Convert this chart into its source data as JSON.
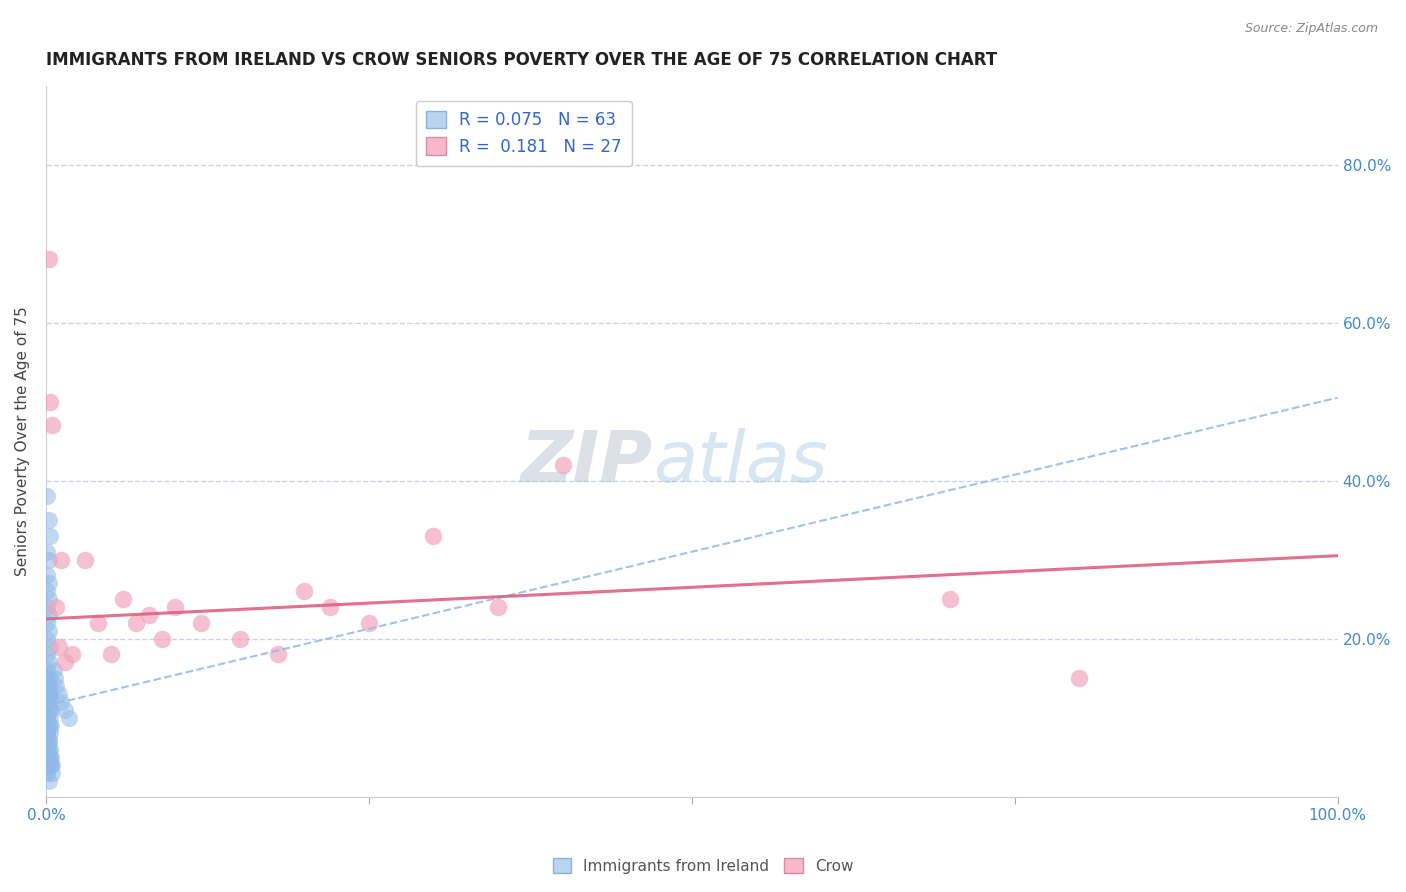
{
  "title": "IMMIGRANTS FROM IRELAND VS CROW SENIORS POVERTY OVER THE AGE OF 75 CORRELATION CHART",
  "source": "Source: ZipAtlas.com",
  "ylabel": "Seniors Poverty Over the Age of 75",
  "xlim": [
    0,
    1.0
  ],
  "ylim": [
    0,
    0.9
  ],
  "yticks": [
    0.2,
    0.4,
    0.6,
    0.8
  ],
  "ytick_labels": [
    "20.0%",
    "40.0%",
    "60.0%",
    "80.0%"
  ],
  "grid_yticks": [
    0.2,
    0.4,
    0.6,
    0.8
  ],
  "xticks": [
    0.0,
    0.25,
    0.5,
    0.75,
    1.0
  ],
  "xtick_labels": [
    "0.0%",
    "",
    "",
    "",
    "100.0%"
  ],
  "legend_line1": "R = 0.075   N = 63",
  "legend_line2": "R =  0.181   N = 27",
  "blue_scatter_x": [
    0.001,
    0.002,
    0.003,
    0.001,
    0.002,
    0.001,
    0.002,
    0.001,
    0.002,
    0.001,
    0.002,
    0.001,
    0.002,
    0.001,
    0.003,
    0.001,
    0.002,
    0.001,
    0.002,
    0.001,
    0.002,
    0.001,
    0.002,
    0.001,
    0.002,
    0.001,
    0.002,
    0.001,
    0.002,
    0.003,
    0.001,
    0.002,
    0.001,
    0.002,
    0.003,
    0.004,
    0.001,
    0.002,
    0.003,
    0.001,
    0.002,
    0.003,
    0.004,
    0.005,
    0.001,
    0.002,
    0.003,
    0.001,
    0.002,
    0.003,
    0.004,
    0.001,
    0.002,
    0.003,
    0.004,
    0.005,
    0.006,
    0.007,
    0.008,
    0.01,
    0.012,
    0.015,
    0.018
  ],
  "blue_scatter_y": [
    0.38,
    0.35,
    0.33,
    0.31,
    0.3,
    0.28,
    0.27,
    0.26,
    0.25,
    0.24,
    0.23,
    0.22,
    0.21,
    0.2,
    0.19,
    0.18,
    0.17,
    0.16,
    0.15,
    0.14,
    0.13,
    0.12,
    0.11,
    0.1,
    0.09,
    0.08,
    0.07,
    0.06,
    0.05,
    0.04,
    0.03,
    0.02,
    0.14,
    0.13,
    0.12,
    0.11,
    0.1,
    0.09,
    0.08,
    0.07,
    0.06,
    0.05,
    0.04,
    0.03,
    0.15,
    0.14,
    0.13,
    0.12,
    0.11,
    0.1,
    0.09,
    0.08,
    0.07,
    0.06,
    0.05,
    0.04,
    0.16,
    0.15,
    0.14,
    0.13,
    0.12,
    0.11,
    0.1
  ],
  "pink_scatter_x": [
    0.002,
    0.003,
    0.005,
    0.008,
    0.01,
    0.012,
    0.015,
    0.02,
    0.03,
    0.04,
    0.05,
    0.06,
    0.07,
    0.08,
    0.09,
    0.1,
    0.12,
    0.15,
    0.18,
    0.2,
    0.22,
    0.25,
    0.3,
    0.35,
    0.4,
    0.7,
    0.8
  ],
  "pink_scatter_y": [
    0.68,
    0.5,
    0.47,
    0.24,
    0.19,
    0.3,
    0.17,
    0.18,
    0.3,
    0.22,
    0.18,
    0.25,
    0.22,
    0.23,
    0.2,
    0.24,
    0.22,
    0.2,
    0.18,
    0.26,
    0.24,
    0.22,
    0.33,
    0.24,
    0.42,
    0.25,
    0.15
  ],
  "blue_line_x": [
    0.0,
    1.0
  ],
  "blue_line_y": [
    0.115,
    0.505
  ],
  "pink_line_x": [
    0.0,
    1.0
  ],
  "pink_line_y": [
    0.225,
    0.305
  ],
  "blue_scatter_color": "#90b8e8",
  "pink_scatter_color": "#f0a0b8",
  "blue_line_color": "#90b8e8",
  "pink_line_color": "#e06080",
  "legend_blue_face": "#b8d4f0",
  "legend_pink_face": "#f8b8c8",
  "watermark_color": "#c8ddf0",
  "grid_color": "#c8d4e0",
  "background_color": "#ffffff",
  "title_fontsize": 12,
  "axis_label_fontsize": 11,
  "tick_fontsize": 11,
  "legend_fontsize": 12
}
